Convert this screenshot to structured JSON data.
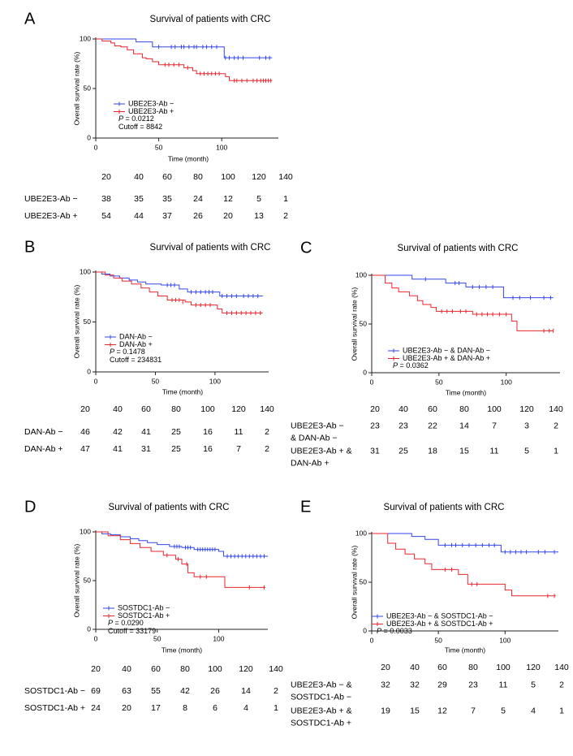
{
  "colors": {
    "blue": "#3346e8",
    "red": "#e8262e",
    "axis": "#222222"
  },
  "chart_data": [
    {
      "panel_label": "A",
      "type": "line",
      "subtype": "kaplan-meier",
      "title": "Survival of patients with CRC",
      "xlabel": "Time (month)",
      "ylabel": "Overall survival rate (%)",
      "xlim": [
        0,
        145
      ],
      "ylim": [
        0,
        100
      ],
      "xticks": [
        0,
        50,
        100
      ],
      "yticks": [
        0,
        50,
        100
      ],
      "legend_placement": "bottom-left",
      "legend_extra": [
        "P = 0.0212",
        "Cutoff = 8842"
      ],
      "series": [
        {
          "name": "UBE2E3-Ab −",
          "color": "blue",
          "x": [
            0,
            25,
            32,
            45,
            100,
            102,
            140
          ],
          "y": [
            100,
            100,
            97,
            92,
            92,
            81,
            81
          ],
          "censor_x": [
            50,
            60,
            63,
            68,
            70,
            74,
            78,
            80,
            85,
            88,
            92,
            96,
            103,
            106,
            110,
            113,
            117,
            130,
            135,
            138
          ],
          "censor_y": [
            92,
            92,
            92,
            92,
            92,
            92,
            92,
            92,
            92,
            92,
            92,
            92,
            81,
            81,
            81,
            81,
            81,
            81,
            81,
            81
          ]
        },
        {
          "name": "UBE2E3-Ab +",
          "color": "red",
          "x": [
            0,
            5,
            12,
            15,
            20,
            25,
            30,
            37,
            40,
            45,
            50,
            70,
            77,
            80,
            100,
            103,
            106,
            140
          ],
          "y": [
            100,
            98,
            96,
            93,
            92,
            89,
            85,
            81,
            80,
            77,
            74,
            71,
            68,
            65,
            65,
            62,
            58,
            58
          ],
          "censor_x": [
            55,
            58,
            62,
            66,
            73,
            83,
            86,
            89,
            92,
            95,
            98,
            110,
            112,
            116,
            120,
            125,
            128,
            131,
            133,
            135,
            137,
            139
          ],
          "censor_y": [
            74,
            74,
            74,
            74,
            71,
            65,
            65,
            65,
            65,
            65,
            65,
            58,
            58,
            58,
            58,
            58,
            58,
            58,
            58,
            58,
            58,
            58
          ]
        }
      ],
      "risk_table": {
        "times": [
          "20",
          "40",
          "60",
          "80",
          "100",
          "120",
          "140"
        ],
        "rows": [
          {
            "label_lines": [
              "UBE2E3-Ab −"
            ],
            "values": [
              "38",
              "35",
              "35",
              "24",
              "12",
              "5",
              "1"
            ]
          },
          {
            "label_lines": [
              "UBE2E3-Ab +"
            ],
            "values": [
              "54",
              "44",
              "37",
              "26",
              "20",
              "13",
              "2"
            ]
          }
        ]
      }
    },
    {
      "panel_label": "B",
      "type": "line",
      "subtype": "kaplan-meier",
      "title": "Survival of patients with CRC",
      "xlabel": "Time (month)",
      "ylabel": "Overall survival rate (%)",
      "xlim": [
        0,
        145
      ],
      "ylim": [
        0,
        100
      ],
      "xticks": [
        0,
        50,
        100
      ],
      "yticks": [
        0,
        50,
        100
      ],
      "legend_placement": "bottom-left",
      "legend_extra": [
        "P = 0.1478",
        "Cutoff = 234831"
      ],
      "series": [
        {
          "name": "DAN-Ab −",
          "color": "blue",
          "x": [
            0,
            5,
            12,
            20,
            28,
            35,
            42,
            55,
            70,
            77,
            100,
            104,
            140
          ],
          "y": [
            100,
            98,
            96,
            94,
            92,
            90,
            88,
            87,
            83,
            80,
            80,
            76,
            76
          ],
          "censor_x": [
            60,
            63,
            66,
            80,
            84,
            88,
            92,
            95,
            98,
            106,
            110,
            114,
            118,
            124,
            128,
            132,
            136
          ],
          "censor_y": [
            87,
            87,
            87,
            80,
            80,
            80,
            80,
            80,
            80,
            76,
            76,
            76,
            76,
            76,
            76,
            76,
            76
          ]
        },
        {
          "name": "DAN-Ab +",
          "color": "red",
          "x": [
            0,
            8,
            15,
            22,
            30,
            38,
            45,
            52,
            60,
            75,
            80,
            102,
            106,
            140
          ],
          "y": [
            100,
            97,
            94,
            91,
            88,
            84,
            80,
            76,
            72,
            70,
            67,
            63,
            59,
            59
          ],
          "censor_x": [
            64,
            67,
            70,
            73,
            84,
            88,
            92,
            96,
            110,
            114,
            118,
            122,
            126,
            130,
            134,
            138
          ],
          "censor_y": [
            72,
            72,
            72,
            70,
            67,
            67,
            67,
            67,
            59,
            59,
            59,
            59,
            59,
            59,
            59,
            59
          ]
        }
      ],
      "risk_table": {
        "times": [
          "20",
          "40",
          "60",
          "80",
          "100",
          "120",
          "140"
        ],
        "rows": [
          {
            "label_lines": [
              "DAN-Ab −"
            ],
            "values": [
              "46",
              "42",
              "41",
              "25",
              "16",
              "11",
              "2"
            ]
          },
          {
            "label_lines": [
              "DAN-Ab +"
            ],
            "values": [
              "47",
              "41",
              "31",
              "25",
              "16",
              "7",
              "2"
            ]
          }
        ]
      }
    },
    {
      "panel_label": "C",
      "type": "line",
      "subtype": "kaplan-meier",
      "title": "Survival of patients with CRC",
      "xlabel": "Time (month)",
      "ylabel": "Overall survival rate (%)",
      "xlim": [
        0,
        140
      ],
      "ylim": [
        0,
        100
      ],
      "xticks": [
        0,
        50,
        100
      ],
      "yticks": [
        0,
        50,
        100
      ],
      "legend_placement": "bottom-left",
      "legend_extra": [
        "P = 0.0362"
      ],
      "series": [
        {
          "name": "UBE2E3-Ab − & DAN-Ab −",
          "color": "blue",
          "x": [
            0,
            30,
            55,
            70,
            95,
            98,
            135
          ],
          "y": [
            100,
            96,
            92,
            88,
            88,
            77,
            77
          ],
          "censor_x": [
            40,
            62,
            65,
            75,
            80,
            85,
            90,
            105,
            110,
            118,
            128,
            133
          ],
          "censor_y": [
            96,
            92,
            92,
            88,
            88,
            88,
            88,
            77,
            77,
            77,
            77,
            77
          ]
        },
        {
          "name": "UBE2E3-Ab + & DAN-Ab +",
          "color": "red",
          "x": [
            0,
            10,
            15,
            20,
            28,
            34,
            38,
            44,
            48,
            62,
            75,
            104,
            108,
            135
          ],
          "y": [
            100,
            92,
            87,
            83,
            79,
            74,
            70,
            67,
            63,
            63,
            60,
            53,
            43,
            43
          ],
          "censor_x": [
            52,
            56,
            60,
            66,
            70,
            78,
            82,
            86,
            90,
            95,
            100,
            128,
            132,
            135
          ],
          "censor_y": [
            63,
            63,
            63,
            63,
            63,
            60,
            60,
            60,
            60,
            60,
            60,
            43,
            43,
            43
          ]
        }
      ],
      "risk_table": {
        "times": [
          "20",
          "40",
          "60",
          "80",
          "100",
          "120",
          "140"
        ],
        "rows": [
          {
            "label_lines": [
              "UBE2E3-Ab −",
              "& DAN-Ab −"
            ],
            "values": [
              "23",
              "23",
              "22",
              "14",
              "7",
              "3",
              "2"
            ]
          },
          {
            "label_lines": [
              "UBE2E3-Ab + &",
              "DAN-Ab +"
            ],
            "values": [
              "31",
              "25",
              "18",
              "15",
              "11",
              "5",
              "1"
            ]
          }
        ]
      }
    },
    {
      "panel_label": "D",
      "type": "line",
      "subtype": "kaplan-meier",
      "title": "Survival of patients with CRC",
      "xlabel": "Time (month)",
      "ylabel": "Overall survival rate (%)",
      "xlim": [
        0,
        140
      ],
      "ylim": [
        0,
        100
      ],
      "xticks": [
        0,
        50,
        100
      ],
      "yticks": [
        0,
        50,
        100
      ],
      "legend_placement": "bottom-left",
      "legend_extra": [
        "P = 0.0290",
        "Cutoff = 33179"
      ],
      "series": [
        {
          "name": "SOSTDC1-Ab −",
          "color": "blue",
          "x": [
            0,
            5,
            12,
            20,
            28,
            35,
            42,
            50,
            60,
            70,
            80,
            100,
            104,
            140
          ],
          "y": [
            100,
            98,
            97,
            95,
            93,
            91,
            89,
            87,
            85,
            84,
            82,
            80,
            75,
            75
          ],
          "censor_x": [
            64,
            66,
            68,
            73,
            75,
            77,
            83,
            85,
            87,
            89,
            91,
            93,
            95,
            97,
            107,
            110,
            113,
            116,
            119,
            122,
            125,
            128,
            131,
            134,
            137
          ],
          "censor_y": [
            85,
            85,
            85,
            84,
            84,
            84,
            82,
            82,
            82,
            82,
            82,
            82,
            82,
            82,
            75,
            75,
            75,
            75,
            75,
            75,
            75,
            75,
            75,
            75,
            75
          ]
        },
        {
          "name": "SOSTDC1-Ab +",
          "color": "red",
          "x": [
            0,
            10,
            20,
            28,
            36,
            45,
            55,
            65,
            70,
            75,
            80,
            103,
            105,
            138
          ],
          "y": [
            100,
            96,
            92,
            88,
            84,
            80,
            76,
            72,
            67,
            58,
            54,
            54,
            43,
            43
          ],
          "censor_x": [
            58,
            67,
            74,
            85,
            90,
            125,
            137
          ],
          "censor_y": [
            76,
            72,
            67,
            54,
            54,
            43,
            43
          ]
        }
      ],
      "risk_table": {
        "times": [
          "20",
          "40",
          "60",
          "80",
          "100",
          "120",
          "140"
        ],
        "rows": [
          {
            "label_lines": [
              "SOSTDC1-Ab −"
            ],
            "values": [
              "69",
              "63",
              "55",
              "42",
              "26",
              "14",
              "2"
            ]
          },
          {
            "label_lines": [
              "SOSTDC1-Ab +"
            ],
            "values": [
              "24",
              "20",
              "17",
              "8",
              "6",
              "4",
              "1"
            ]
          }
        ]
      }
    },
    {
      "panel_label": "E",
      "type": "line",
      "subtype": "kaplan-meier",
      "title": "Survival of patients with CRC",
      "xlabel": "Time (month)",
      "ylabel": "Overall survival rate (%)",
      "xlim": [
        0,
        140
      ],
      "ylim": [
        0,
        100
      ],
      "xticks": [
        0,
        50,
        100
      ],
      "yticks": [
        0,
        50,
        100
      ],
      "legend_placement": "bottom-left",
      "legend_extra": [
        "P = 0.0033"
      ],
      "series": [
        {
          "name": "UBE2E3-Ab − & SOSTDC1-Ab −",
          "color": "blue",
          "x": [
            0,
            30,
            40,
            50,
            95,
            97,
            140
          ],
          "y": [
            100,
            97,
            94,
            88,
            88,
            81,
            81
          ],
          "censor_x": [
            55,
            60,
            63,
            68,
            73,
            78,
            83,
            88,
            92,
            100,
            104,
            108,
            112,
            116,
            125,
            130,
            137
          ],
          "censor_y": [
            88,
            88,
            88,
            88,
            88,
            88,
            88,
            88,
            88,
            81,
            81,
            81,
            81,
            81,
            81,
            81,
            81
          ]
        },
        {
          "name": "UBE2E3-Ab + & SOSTDC1-Ab +",
          "color": "red",
          "x": [
            0,
            12,
            18,
            25,
            32,
            40,
            45,
            65,
            72,
            100,
            105,
            138
          ],
          "y": [
            100,
            90,
            84,
            79,
            74,
            69,
            63,
            58,
            48,
            42,
            36,
            36
          ],
          "censor_x": [
            55,
            60,
            75,
            79,
            132,
            137
          ],
          "censor_y": [
            63,
            63,
            48,
            48,
            36,
            36
          ]
        }
      ],
      "risk_table": {
        "times": [
          "20",
          "40",
          "60",
          "80",
          "100",
          "120",
          "140"
        ],
        "rows": [
          {
            "label_lines": [
              "UBE2E3-Ab − &",
              "SOSTDC1-Ab −"
            ],
            "values": [
              "32",
              "32",
              "29",
              "23",
              "11",
              "5",
              "2"
            ]
          },
          {
            "label_lines": [
              "UBE2E3-Ab + &",
              "SOSTDC1-Ab +"
            ],
            "values": [
              "19",
              "15",
              "12",
              "7",
              "5",
              "4",
              "1"
            ]
          }
        ]
      }
    }
  ]
}
